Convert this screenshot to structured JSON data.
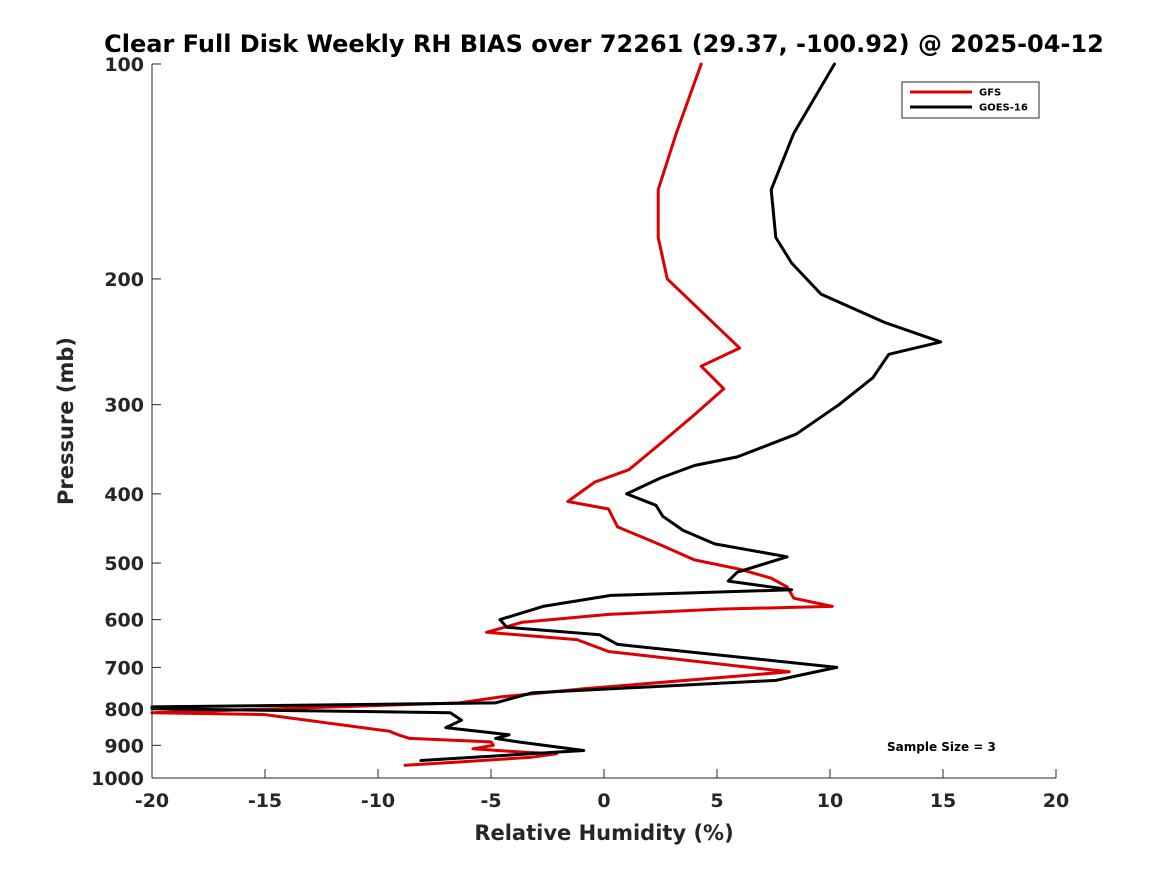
{
  "chart_data": {
    "type": "line",
    "title": "Clear Full Disk Weekly RH BIAS over 72261 (29.37, -100.92) @ 2025-04-12",
    "xlabel": "Relative Humidity (%)",
    "ylabel": "Pressure (mb)",
    "xlim": [
      -20,
      20
    ],
    "ylim": [
      100,
      1000
    ],
    "y_scale": "log",
    "y_reversed": true,
    "x_ticks": [
      -20,
      -15,
      -10,
      -5,
      0,
      5,
      10,
      15,
      20
    ],
    "x_tick_labels": [
      "-20",
      "-15",
      "-10",
      "-5",
      "0",
      "5",
      "10",
      "15",
      "20"
    ],
    "y_ticks": [
      100,
      200,
      300,
      400,
      500,
      600,
      700,
      800,
      900,
      1000
    ],
    "y_tick_labels": [
      "100",
      "200",
      "300",
      "400",
      "500",
      "600",
      "700",
      "800",
      "900",
      "1000"
    ],
    "grid": false,
    "legend_position": "top-right",
    "annotation": "Sample Size = 3",
    "series": [
      {
        "name": "GFS",
        "color": "#dd0000",
        "points": [
          [
            4.3,
            100
          ],
          [
            3.2,
            125
          ],
          [
            2.4,
            150
          ],
          [
            2.4,
            175
          ],
          [
            2.8,
            200
          ],
          [
            6.0,
            250
          ],
          [
            4.3,
            265
          ],
          [
            5.3,
            285
          ],
          [
            4.0,
            310
          ],
          [
            2.5,
            340
          ],
          [
            1.1,
            370
          ],
          [
            -0.4,
            385
          ],
          [
            -0.9,
            395
          ],
          [
            -1.6,
            410
          ],
          [
            0.2,
            420
          ],
          [
            0.6,
            445
          ],
          [
            2.4,
            470
          ],
          [
            4.0,
            495
          ],
          [
            6.0,
            510
          ],
          [
            7.4,
            525
          ],
          [
            8.1,
            540
          ],
          [
            8.4,
            560
          ],
          [
            10.1,
            575
          ],
          [
            5.1,
            580
          ],
          [
            0.2,
            590
          ],
          [
            -3.6,
            605
          ],
          [
            -5.2,
            625
          ],
          [
            -1.2,
            640
          ],
          [
            0.2,
            665
          ],
          [
            8.2,
            710
          ],
          [
            5.9,
            720
          ],
          [
            -0.9,
            750
          ],
          [
            -4.6,
            770
          ],
          [
            -6.4,
            785
          ],
          [
            -20.0,
            810
          ],
          [
            -15.0,
            815
          ],
          [
            -9.5,
            860
          ],
          [
            -9.1,
            870
          ],
          [
            -8.6,
            880
          ],
          [
            -5.0,
            890
          ],
          [
            -4.9,
            900
          ],
          [
            -5.8,
            910
          ],
          [
            -3.6,
            920
          ],
          [
            -2.1,
            925
          ],
          [
            -3.2,
            935
          ],
          [
            -6.5,
            950
          ],
          [
            -8.8,
            960
          ]
        ]
      },
      {
        "name": "GOES-16",
        "color": "#000000",
        "points": [
          [
            10.2,
            100
          ],
          [
            8.4,
            125
          ],
          [
            7.4,
            150
          ],
          [
            7.6,
            175
          ],
          [
            8.3,
            190
          ],
          [
            9.6,
            210
          ],
          [
            12.4,
            230
          ],
          [
            14.9,
            245
          ],
          [
            12.6,
            255
          ],
          [
            11.9,
            275
          ],
          [
            10.4,
            300
          ],
          [
            8.5,
            330
          ],
          [
            5.9,
            355
          ],
          [
            4.0,
            365
          ],
          [
            2.5,
            380
          ],
          [
            1.0,
            400
          ],
          [
            2.3,
            415
          ],
          [
            2.6,
            430
          ],
          [
            3.5,
            450
          ],
          [
            4.9,
            470
          ],
          [
            8.1,
            490
          ],
          [
            5.9,
            515
          ],
          [
            5.5,
            530
          ],
          [
            8.3,
            545
          ],
          [
            0.3,
            555
          ],
          [
            -2.7,
            575
          ],
          [
            -4.6,
            600
          ],
          [
            -4.3,
            615
          ],
          [
            -0.2,
            630
          ],
          [
            0.6,
            650
          ],
          [
            10.3,
            700
          ],
          [
            7.6,
            730
          ],
          [
            -3.2,
            760
          ],
          [
            -4.8,
            785
          ],
          [
            -20.0,
            795
          ],
          [
            -20.0,
            800
          ],
          [
            -6.8,
            810
          ],
          [
            -6.3,
            830
          ],
          [
            -7.0,
            850
          ],
          [
            -4.2,
            870
          ],
          [
            -4.8,
            880
          ],
          [
            -3.8,
            890
          ],
          [
            -0.9,
            915
          ],
          [
            -8.1,
            945
          ]
        ]
      }
    ]
  }
}
